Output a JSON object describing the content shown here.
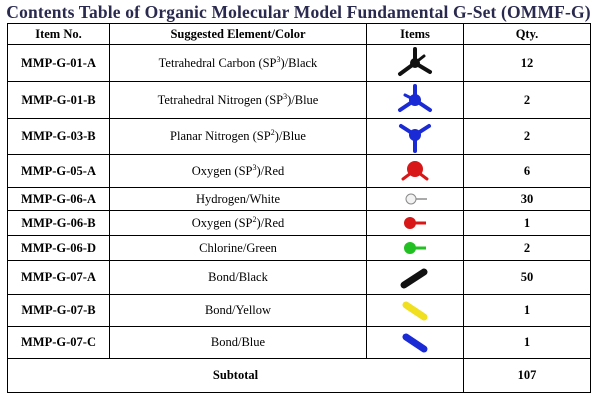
{
  "title": "Contents Table of Organic Molecular Model Fundamental G-Set (OMMF-G)",
  "headers": {
    "item_no": "Item No.",
    "element": "Suggested Element/Color",
    "items": "Items",
    "qty": "Qty."
  },
  "rows": [
    {
      "item": "MMP-G-01-A",
      "element": "Tetrahedral Carbon (SP",
      "sup": "3",
      "suffix": ")/Black",
      "qty": "12",
      "icon": "tetrahedral-carbon-icon",
      "color": "#111111"
    },
    {
      "item": "MMP-G-01-B",
      "element": "Tetrahedral Nitrogen (SP",
      "sup": "3",
      "suffix": ")/Blue",
      "qty": "2",
      "icon": "tetrahedral-nitrogen-icon",
      "color": "#1a2bd6"
    },
    {
      "item": "MMP-G-03-B",
      "element": "Planar Nitrogen (SP",
      "sup": "2",
      "suffix": ")/Blue",
      "qty": "2",
      "icon": "planar-nitrogen-icon",
      "color": "#1a2bd6"
    },
    {
      "item": "MMP-G-05-A",
      "element": "Oxygen (SP",
      "sup": "3",
      "suffix": ")/Red",
      "qty": "6",
      "icon": "oxygen-sp3-icon",
      "color": "#d81818"
    },
    {
      "item": "MMP-G-06-A",
      "element": "Hydrogen/White",
      "sup": "",
      "suffix": "",
      "qty": "30",
      "icon": "hydrogen-icon",
      "color": "#f2f2f2"
    },
    {
      "item": "MMP-G-06-B",
      "element": "Oxygen (SP",
      "sup": "2",
      "suffix": ")/Red",
      "qty": "1",
      "icon": "oxygen-sp2-icon",
      "color": "#d81818"
    },
    {
      "item": "MMP-G-06-D",
      "element": "Chlorine/Green",
      "sup": "",
      "suffix": "",
      "qty": "2",
      "icon": "chlorine-icon",
      "color": "#22c022"
    },
    {
      "item": "MMP-G-07-A",
      "element": "Bond/Black",
      "sup": "",
      "suffix": "",
      "qty": "50",
      "icon": "black-bond-icon",
      "color": "#111111"
    },
    {
      "item": "MMP-G-07-B",
      "element": "Bond/Yellow",
      "sup": "",
      "suffix": "",
      "qty": "1",
      "icon": "yellow-bond-icon",
      "color": "#f0e020"
    },
    {
      "item": "MMP-G-07-C",
      "element": "Bond/Blue",
      "sup": "",
      "suffix": "",
      "qty": "1",
      "icon": "blue-bond-icon",
      "color": "#1a2bd6"
    }
  ],
  "subtotal": {
    "label": "Subtotal",
    "qty": "107"
  }
}
